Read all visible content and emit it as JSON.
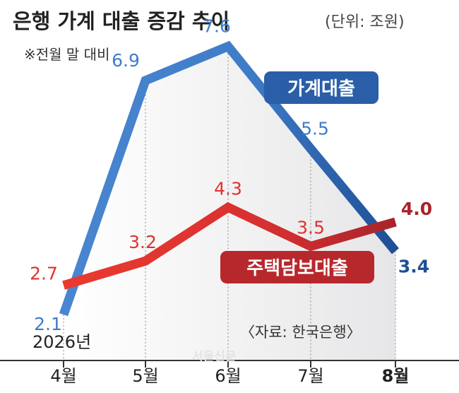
{
  "header": {
    "title": "은행 가계 대출 증감 추이",
    "unit": "(단위: 조원)",
    "note": "※전월 말 대비"
  },
  "year_label": "2026년",
  "source": "〈자료: 한국은행〉",
  "watermark": "서울신문",
  "chart_data": {
    "type": "line",
    "categories": [
      "4월",
      "5월",
      "6월",
      "7월",
      "8월"
    ],
    "series": [
      {
        "name": "가계대출",
        "values": [
          2.1,
          6.9,
          7.6,
          5.5,
          3.4
        ],
        "color": "#3f7cc8",
        "color_end": "#1f4e96"
      },
      {
        "name": "주택담보대출",
        "values": [
          2.7,
          3.2,
          4.3,
          3.5,
          4.0
        ],
        "color": "#e0322e",
        "color_end": "#a8242a"
      }
    ],
    "title": "은행 가계 대출 증감 추이",
    "ylabel": "조원",
    "ylim": [
      0,
      8
    ],
    "grid": "vertical-dotted",
    "legend": "inline-labels"
  }
}
